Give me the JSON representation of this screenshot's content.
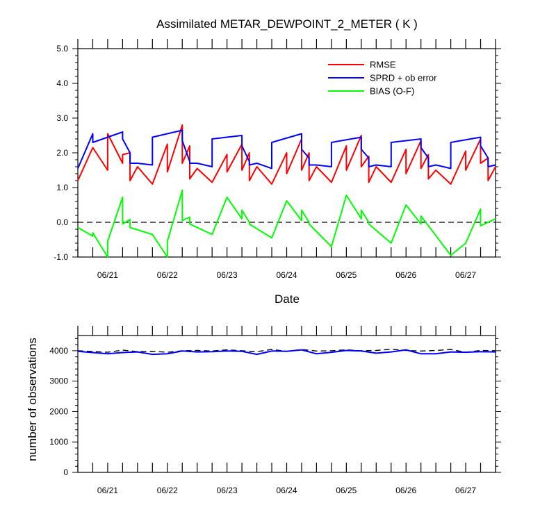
{
  "chart_data": [
    {
      "type": "line",
      "title": "Assimilated METAR_DEWPOINT_2_METER ( K )",
      "xlabel": "Date",
      "ylabel": "",
      "ylim": [
        -1.0,
        5.0
      ],
      "xlim": [
        "2020-06-20T12:00",
        "2020-06-27T12:00"
      ],
      "yticks": [
        "5.0",
        "4.0",
        "3.0",
        "2.0",
        "1.0",
        "0.0",
        "-1.0"
      ],
      "xticks": [
        "06/21",
        "06/22",
        "06/23",
        "06/24",
        "06/25",
        "06/26",
        "06/27"
      ],
      "legend_position": "top-right",
      "zero_line": "dashed",
      "series": [
        {
          "name": "RMSE",
          "color": "#ff0000",
          "x": [
            "2020-06-20T12:00",
            "2020-06-20T18:00",
            "2020-06-21T00:00",
            "2020-06-21T00:00",
            "2020-06-21T06:00",
            "2020-06-21T06:00",
            "2020-06-21T09:00",
            "2020-06-21T09:00",
            "2020-06-21T12:00",
            "2020-06-21T18:00",
            "2020-06-22T00:00",
            "2020-06-22T00:00",
            "2020-06-22T06:00",
            "2020-06-22T06:00",
            "2020-06-22T09:00",
            "2020-06-22T09:00",
            "2020-06-22T12:00",
            "2020-06-22T18:00",
            "2020-06-23T00:00",
            "2020-06-23T00:00",
            "2020-06-23T06:00",
            "2020-06-23T06:00",
            "2020-06-23T09:00",
            "2020-06-23T09:00",
            "2020-06-23T12:00",
            "2020-06-23T18:00",
            "2020-06-24T00:00",
            "2020-06-24T00:00",
            "2020-06-24T06:00",
            "2020-06-24T06:00",
            "2020-06-24T09:00",
            "2020-06-24T09:00",
            "2020-06-24T12:00",
            "2020-06-24T18:00",
            "2020-06-25T00:00",
            "2020-06-25T00:00",
            "2020-06-25T06:00",
            "2020-06-25T06:00",
            "2020-06-25T09:00",
            "2020-06-25T09:00",
            "2020-06-25T12:00",
            "2020-06-25T18:00",
            "2020-06-26T00:00",
            "2020-06-26T00:00",
            "2020-06-26T06:00",
            "2020-06-26T06:00",
            "2020-06-26T09:00",
            "2020-06-26T09:00",
            "2020-06-26T12:00",
            "2020-06-26T18:00",
            "2020-06-27T00:00",
            "2020-06-27T00:00",
            "2020-06-27T06:00",
            "2020-06-27T06:00",
            "2020-06-27T09:00",
            "2020-06-27T09:00",
            "2020-06-27T12:00"
          ],
          "values": [
            1.2,
            2.15,
            1.5,
            2.55,
            1.7,
            1.95,
            2.0,
            1.2,
            1.6,
            1.1,
            2.25,
            1.45,
            2.8,
            1.7,
            2.2,
            1.25,
            1.55,
            1.15,
            1.95,
            1.45,
            2.25,
            1.5,
            2.0,
            1.2,
            1.6,
            1.1,
            2.0,
            1.4,
            2.4,
            1.5,
            2.0,
            1.2,
            1.6,
            1.15,
            2.2,
            1.5,
            2.5,
            1.6,
            1.9,
            1.15,
            1.6,
            1.15,
            2.1,
            1.4,
            2.35,
            1.55,
            1.95,
            1.25,
            1.5,
            1.1,
            2.05,
            1.5,
            2.4,
            1.7,
            1.85,
            1.2,
            1.6
          ]
        },
        {
          "name": "SPRD + ob error",
          "color": "#0000ff",
          "x": [
            "2020-06-20T12:00",
            "2020-06-20T18:00",
            "2020-06-20T18:00",
            "2020-06-21T06:00",
            "2020-06-21T06:00",
            "2020-06-21T09:00",
            "2020-06-21T09:00",
            "2020-06-21T12:00",
            "2020-06-21T18:00",
            "2020-06-21T18:00",
            "2020-06-22T06:00",
            "2020-06-22T06:00",
            "2020-06-22T09:00",
            "2020-06-22T09:00",
            "2020-06-22T12:00",
            "2020-06-22T18:00",
            "2020-06-22T18:00",
            "2020-06-23T06:00",
            "2020-06-23T06:00",
            "2020-06-23T09:00",
            "2020-06-23T09:00",
            "2020-06-23T12:00",
            "2020-06-23T18:00",
            "2020-06-23T18:00",
            "2020-06-24T06:00",
            "2020-06-24T06:00",
            "2020-06-24T09:00",
            "2020-06-24T09:00",
            "2020-06-24T12:00",
            "2020-06-24T18:00",
            "2020-06-24T18:00",
            "2020-06-25T06:00",
            "2020-06-25T06:00",
            "2020-06-25T09:00",
            "2020-06-25T09:00",
            "2020-06-25T12:00",
            "2020-06-25T18:00",
            "2020-06-25T18:00",
            "2020-06-26T06:00",
            "2020-06-26T06:00",
            "2020-06-26T09:00",
            "2020-06-26T09:00",
            "2020-06-26T12:00",
            "2020-06-26T18:00",
            "2020-06-26T18:00",
            "2020-06-27T06:00",
            "2020-06-27T06:00",
            "2020-06-27T09:00",
            "2020-06-27T09:00",
            "2020-06-27T12:00"
          ],
          "values": [
            1.55,
            2.55,
            2.3,
            2.6,
            2.4,
            2.0,
            1.7,
            1.7,
            1.65,
            2.45,
            2.65,
            2.35,
            1.75,
            1.7,
            1.7,
            1.6,
            2.4,
            2.5,
            2.2,
            1.75,
            1.65,
            1.7,
            1.55,
            2.3,
            2.55,
            2.1,
            1.85,
            1.65,
            1.65,
            1.6,
            2.3,
            2.45,
            2.1,
            1.85,
            1.6,
            1.65,
            1.6,
            2.3,
            2.4,
            2.15,
            1.85,
            1.6,
            1.65,
            1.55,
            2.3,
            2.45,
            2.2,
            1.85,
            1.6,
            1.65
          ]
        },
        {
          "name": "BIAS (O-F)",
          "color": "#00ff00",
          "x": [
            "2020-06-20T12:00",
            "2020-06-20T18:00",
            "2020-06-20T18:00",
            "2020-06-21T00:00",
            "2020-06-21T00:00",
            "2020-06-21T06:00",
            "2020-06-21T06:00",
            "2020-06-21T09:00",
            "2020-06-21T09:00",
            "2020-06-21T18:00",
            "2020-06-22T00:00",
            "2020-06-22T00:00",
            "2020-06-22T06:00",
            "2020-06-22T06:00",
            "2020-06-22T09:00",
            "2020-06-22T09:00",
            "2020-06-22T18:00",
            "2020-06-23T00:00",
            "2020-06-23T06:00",
            "2020-06-23T06:00",
            "2020-06-23T09:00",
            "2020-06-23T09:00",
            "2020-06-23T18:00",
            "2020-06-24T00:00",
            "2020-06-24T06:00",
            "2020-06-24T06:00",
            "2020-06-24T09:00",
            "2020-06-24T09:00",
            "2020-06-24T18:00",
            "2020-06-25T00:00",
            "2020-06-25T06:00",
            "2020-06-25T06:00",
            "2020-06-25T09:00",
            "2020-06-25T09:00",
            "2020-06-25T18:00",
            "2020-06-26T00:00",
            "2020-06-26T06:00",
            "2020-06-26T06:00",
            "2020-06-26T09:00",
            "2020-06-26T09:00",
            "2020-06-26T18:00",
            "2020-06-27T00:00",
            "2020-06-27T00:00",
            "2020-06-27T06:00",
            "2020-06-27T06:00",
            "2020-06-27T12:00"
          ],
          "values": [
            -0.15,
            -0.4,
            -0.3,
            -1.0,
            -0.55,
            0.72,
            -0.05,
            0.08,
            -0.15,
            -0.35,
            -1.0,
            -0.55,
            0.92,
            0.05,
            0.15,
            -0.05,
            -0.35,
            0.72,
            0.1,
            0.35,
            0.0,
            -0.05,
            -0.45,
            0.62,
            0.05,
            0.35,
            0.0,
            -0.05,
            -0.7,
            0.78,
            0.1,
            0.35,
            0.0,
            -0.05,
            -0.6,
            0.5,
            -0.05,
            0.18,
            -0.1,
            -0.1,
            -0.95,
            -0.6,
            -0.6,
            0.38,
            -0.1,
            0.1
          ]
        }
      ]
    },
    {
      "type": "line",
      "title": "",
      "xlabel": "",
      "ylabel": "number of observations",
      "ylim": [
        0,
        4500
      ],
      "xlim": [
        "2020-06-20T12:00",
        "2020-06-27T12:00"
      ],
      "yticks": [
        "4000",
        "3000",
        "2000",
        "1000",
        "0"
      ],
      "xticks": [
        "06/21",
        "06/22",
        "06/23",
        "06/24",
        "06/25",
        "06/26",
        "06/27"
      ],
      "series": [
        {
          "style": "dashed",
          "color": "#000000",
          "x": [
            "2020-06-20T12:00",
            "2020-06-21T00:00",
            "2020-06-21T06:00",
            "2020-06-21T12:00",
            "2020-06-21T18:00",
            "2020-06-22T00:00",
            "2020-06-22T06:00",
            "2020-06-22T12:00",
            "2020-06-22T18:00",
            "2020-06-23T00:00",
            "2020-06-23T06:00",
            "2020-06-23T12:00",
            "2020-06-23T18:00",
            "2020-06-24T00:00",
            "2020-06-24T06:00",
            "2020-06-24T12:00",
            "2020-06-24T18:00",
            "2020-06-25T00:00",
            "2020-06-25T06:00",
            "2020-06-25T12:00",
            "2020-06-25T18:00",
            "2020-06-26T00:00",
            "2020-06-26T06:00",
            "2020-06-26T12:00",
            "2020-06-26T18:00",
            "2020-06-27T00:00",
            "2020-06-27T06:00",
            "2020-06-27T12:00"
          ],
          "values": [
            4000,
            3950,
            4020,
            3970,
            3980,
            3950,
            4000,
            4010,
            3990,
            4030,
            4000,
            3970,
            4040,
            3980,
            4040,
            3990,
            4000,
            4030,
            4000,
            4010,
            4050,
            4010,
            3990,
            4010,
            4040,
            3950,
            4010,
            4000
          ]
        },
        {
          "style": "solid",
          "color": "#0000ff",
          "x": [
            "2020-06-20T12:00",
            "2020-06-21T00:00",
            "2020-06-21T06:00",
            "2020-06-21T12:00",
            "2020-06-21T18:00",
            "2020-06-22T00:00",
            "2020-06-22T06:00",
            "2020-06-22T12:00",
            "2020-06-22T18:00",
            "2020-06-23T00:00",
            "2020-06-23T06:00",
            "2020-06-23T12:00",
            "2020-06-23T18:00",
            "2020-06-24T00:00",
            "2020-06-24T06:00",
            "2020-06-24T12:00",
            "2020-06-24T18:00",
            "2020-06-25T00:00",
            "2020-06-25T06:00",
            "2020-06-25T12:00",
            "2020-06-25T18:00",
            "2020-06-26T00:00",
            "2020-06-26T06:00",
            "2020-06-26T12:00",
            "2020-06-26T18:00",
            "2020-06-27T00:00",
            "2020-06-27T06:00",
            "2020-06-27T12:00"
          ],
          "values": [
            3980,
            3900,
            3940,
            3960,
            3880,
            3900,
            3990,
            3960,
            3970,
            3990,
            3980,
            3880,
            3990,
            3980,
            4030,
            3900,
            3950,
            4010,
            3990,
            3920,
            3960,
            4030,
            3900,
            3900,
            3960,
            3950,
            3970,
            3960
          ]
        }
      ]
    }
  ]
}
